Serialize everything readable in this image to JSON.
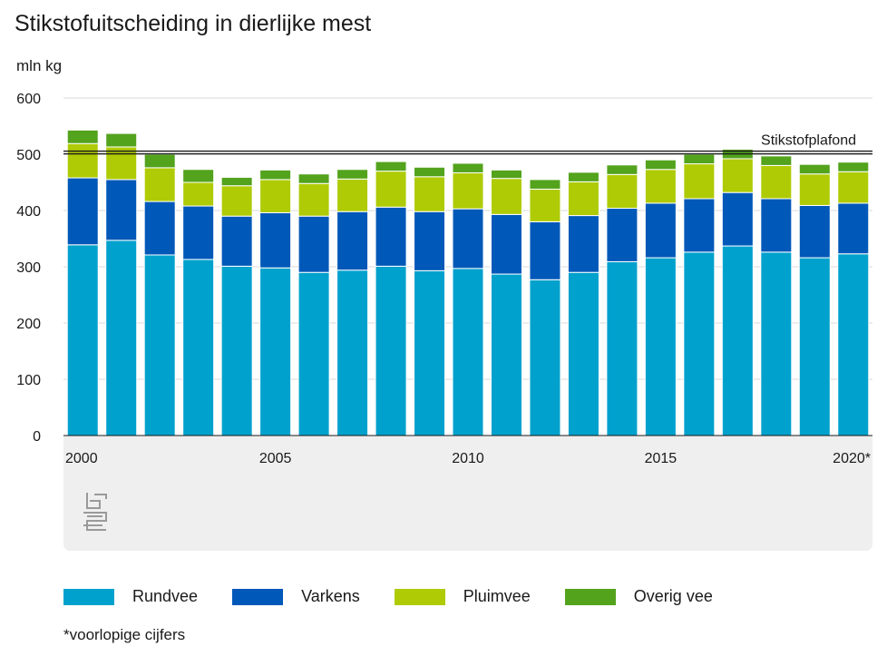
{
  "title": "Stikstofuitscheiding in dierlijke mest",
  "unit_label": "mln kg",
  "footnote": "*voorlopige cijfers",
  "ceiling_label": "Stikstofplafond",
  "colors": {
    "rundvee": "#00a1cd",
    "varkens": "#0058b8",
    "pluimvee": "#afcb05",
    "overig": "#53a31d",
    "panel": "#efefef",
    "grid": "#d9d9d9"
  },
  "chart_data": {
    "type": "bar",
    "stacked": true,
    "title": "Stikstofuitscheiding in dierlijke mest",
    "ylabel": "mln kg",
    "ylim": [
      0,
      600
    ],
    "yticks": [
      0,
      100,
      200,
      300,
      400,
      500,
      600
    ],
    "categories": [
      "2000",
      "2001",
      "2002",
      "2003",
      "2004",
      "2005",
      "2006",
      "2007",
      "2008",
      "2009",
      "2010",
      "2011",
      "2012",
      "2013",
      "2014",
      "2015",
      "2016",
      "2017",
      "2018",
      "2019",
      "2020*"
    ],
    "xtick_labels": [
      "2000",
      "2005",
      "2010",
      "2015",
      "2020*"
    ],
    "series": [
      {
        "name": "Rundvee",
        "values": [
          339,
          347,
          321,
          313,
          301,
          298,
          290,
          294,
          301,
          293,
          297,
          287,
          277,
          290,
          309,
          316,
          326,
          337,
          326,
          316,
          323
        ]
      },
      {
        "name": "Varkens",
        "values": [
          119,
          108,
          95,
          95,
          89,
          98,
          100,
          104,
          105,
          105,
          106,
          106,
          103,
          101,
          95,
          97,
          95,
          95,
          95,
          93,
          90
        ]
      },
      {
        "name": "Pluimvee",
        "values": [
          61,
          58,
          60,
          42,
          54,
          59,
          58,
          58,
          64,
          62,
          64,
          64,
          58,
          60,
          60,
          60,
          62,
          60,
          59,
          56,
          56
        ]
      },
      {
        "name": "Overig vee",
        "values": [
          24,
          24,
          24,
          23,
          15,
          17,
          17,
          17,
          17,
          17,
          17,
          15,
          17,
          17,
          17,
          17,
          17,
          17,
          17,
          17,
          17
        ]
      }
    ],
    "reference_line": {
      "label": "Stikstofplafond",
      "value": 504
    },
    "grid": true,
    "legend_position": "bottom"
  }
}
